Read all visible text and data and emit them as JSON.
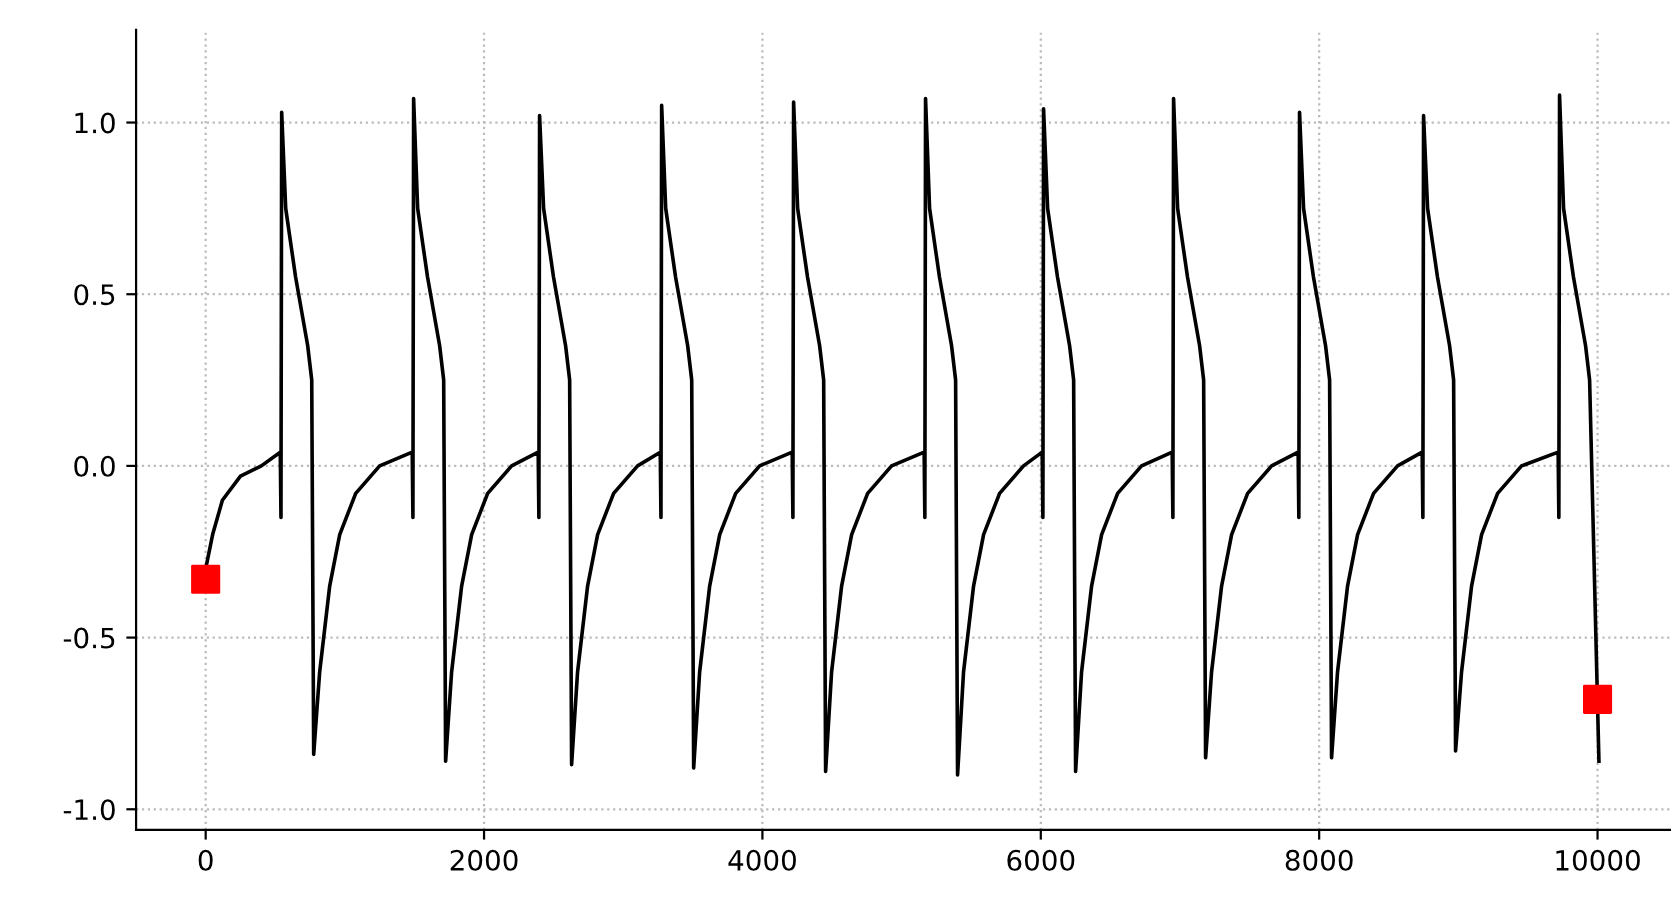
{
  "chart_data": {
    "type": "line",
    "xlim": [
      -500,
      10520
    ],
    "ylim": [
      -1.06,
      1.27
    ],
    "xticks": [
      0,
      2000,
      4000,
      6000,
      8000,
      10000
    ],
    "yticks": [
      {
        "value": -1.0,
        "label": "-1.0"
      },
      {
        "value": -0.5,
        "label": "-0.5"
      },
      {
        "value": 0.0,
        "label": "0.0"
      },
      {
        "value": 0.5,
        "label": "0.5"
      },
      {
        "value": 1.0,
        "label": "1.0"
      }
    ],
    "grid": true,
    "legend": false,
    "series": [
      {
        "color": "#000000",
        "marker": "none",
        "line_style": "solid",
        "x": [
          0,
          50,
          120,
          250,
          400,
          536,
          541,
          546,
          575,
          646,
          733,
          762,
          776,
          819,
          891,
          963,
          1078,
          1250,
          1484,
          1489,
          1494,
          1523,
          1594,
          1681,
          1710,
          1724,
          1767,
          1839,
          1911,
          2026,
          2198,
          2389,
          2394,
          2399,
          2428,
          2499,
          2586,
          2615,
          2629,
          2672,
          2744,
          2816,
          2931,
          3103,
          3266,
          3271,
          3276,
          3305,
          3376,
          3463,
          3492,
          3506,
          3549,
          3621,
          3693,
          3808,
          3980,
          4214,
          4219,
          4224,
          4253,
          4324,
          4411,
          4440,
          4454,
          4497,
          4569,
          4641,
          4756,
          4928,
          5162,
          5167,
          5172,
          5201,
          5272,
          5359,
          5388,
          5402,
          5445,
          5517,
          5589,
          5704,
          5876,
          6010,
          6015,
          6020,
          6049,
          6120,
          6207,
          6236,
          6250,
          6293,
          6365,
          6437,
          6552,
          6724,
          6944,
          6949,
          6954,
          6983,
          7054,
          7141,
          7170,
          7184,
          7227,
          7299,
          7371,
          7486,
          7658,
          7849,
          7854,
          7859,
          7888,
          7959,
          8046,
          8075,
          8089,
          8132,
          8204,
          8276,
          8391,
          8563,
          8740,
          8745,
          8750,
          8779,
          8850,
          8937,
          8966,
          8980,
          9023,
          9095,
          9167,
          9282,
          9454,
          9717,
          9722,
          9727,
          9756,
          9827,
          9914,
          9943,
          10010
        ],
        "values": [
          -0.3,
          -0.2,
          -0.1,
          -0.03,
          0.0,
          0.04,
          -0.15,
          1.03,
          0.75,
          0.55,
          0.35,
          0.25,
          -0.84,
          -0.6,
          -0.35,
          -0.2,
          -0.08,
          0.0,
          0.04,
          -0.15,
          1.07,
          0.75,
          0.55,
          0.35,
          0.25,
          -0.86,
          -0.6,
          -0.35,
          -0.2,
          -0.08,
          0.0,
          0.04,
          -0.15,
          1.02,
          0.75,
          0.55,
          0.35,
          0.25,
          -0.87,
          -0.6,
          -0.35,
          -0.2,
          -0.08,
          0.0,
          0.04,
          -0.15,
          1.05,
          0.75,
          0.55,
          0.35,
          0.25,
          -0.88,
          -0.6,
          -0.35,
          -0.2,
          -0.08,
          0.0,
          0.04,
          -0.15,
          1.06,
          0.75,
          0.55,
          0.35,
          0.25,
          -0.89,
          -0.6,
          -0.35,
          -0.2,
          -0.08,
          0.0,
          0.04,
          -0.15,
          1.07,
          0.75,
          0.55,
          0.35,
          0.25,
          -0.9,
          -0.6,
          -0.35,
          -0.2,
          -0.08,
          0.0,
          0.04,
          -0.15,
          1.04,
          0.75,
          0.55,
          0.35,
          0.25,
          -0.89,
          -0.6,
          -0.35,
          -0.2,
          -0.08,
          0.0,
          0.04,
          -0.15,
          1.07,
          0.75,
          0.55,
          0.35,
          0.25,
          -0.85,
          -0.6,
          -0.35,
          -0.2,
          -0.08,
          0.0,
          0.04,
          -0.15,
          1.03,
          0.75,
          0.55,
          0.35,
          0.25,
          -0.85,
          -0.6,
          -0.35,
          -0.2,
          -0.08,
          0.0,
          0.04,
          -0.15,
          1.02,
          0.75,
          0.55,
          0.35,
          0.25,
          -0.83,
          -0.6,
          -0.35,
          -0.2,
          -0.08,
          0.0,
          0.04,
          -0.15,
          1.08,
          0.75,
          0.55,
          0.35,
          0.25,
          -0.86
        ]
      },
      {
        "type": "scatter",
        "color": "#ff0000",
        "marker": "square",
        "x": [
          0,
          10000
        ],
        "values": [
          -0.33,
          -0.68
        ]
      }
    ]
  }
}
